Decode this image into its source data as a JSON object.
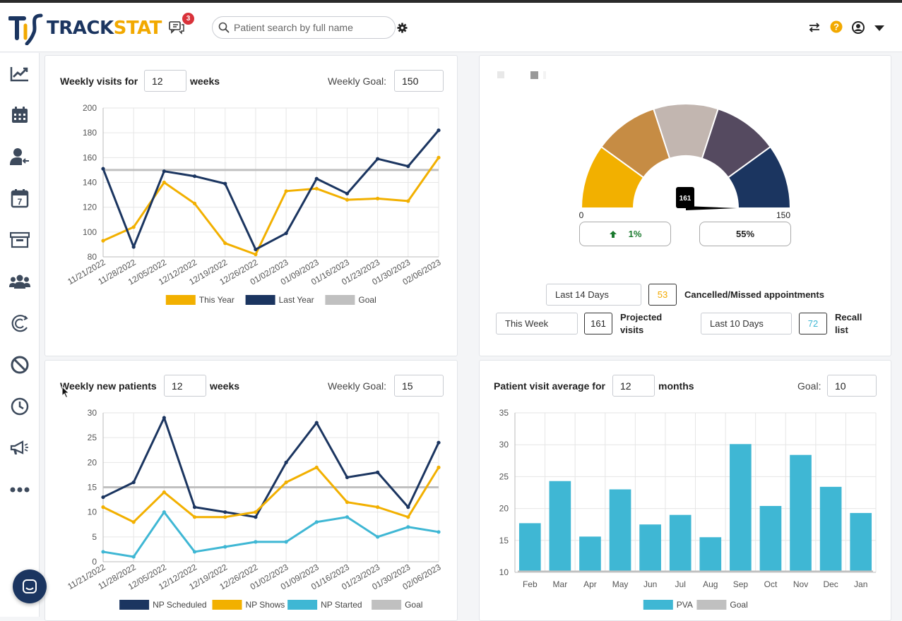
{
  "app": {
    "brand_part1": "TRACK",
    "brand_part2": "STAT",
    "notification_count": "3",
    "search_placeholder": "Patient search by full name",
    "colors": {
      "navy": "#1b3560",
      "gold": "#f2b000",
      "teal": "#3fb7d4",
      "goal_gray": "#c0c0c0",
      "badge_red": "#d9323a"
    }
  },
  "header_icons": [
    "chat-icon",
    "settings-gear-icon",
    "swap-arrows-icon",
    "help-icon",
    "user-account-icon",
    "dropdown-caret-icon"
  ],
  "sidebar": {
    "items": [
      "analytics-chart-icon",
      "calendar-icon",
      "user-arrival-icon",
      "calendar-day-icon",
      "archive-icon",
      "patients-group-icon",
      "recall-icon",
      "cancelled-icon",
      "history-clock-icon",
      "marketing-megaphone-icon",
      "more-icon"
    ],
    "calendar_day": "7"
  },
  "weekly_visits": {
    "title_prefix": "Weekly visits for",
    "weeks_value": "12",
    "title_suffix": "weeks",
    "goal_label": "Weekly Goal:",
    "goal_value": "150",
    "chart_data": {
      "type": "line",
      "categories": [
        "11/21/2022",
        "11/28/2022",
        "12/05/2022",
        "12/12/2022",
        "12/19/2022",
        "12/26/2022",
        "01/02/2023",
        "01/09/2023",
        "01/16/2023",
        "01/23/2023",
        "01/30/2023",
        "02/06/2023"
      ],
      "ylim": [
        80,
        200
      ],
      "yticks": [
        80,
        100,
        120,
        140,
        160,
        180,
        200
      ],
      "grid": true,
      "legend_position": "bottom",
      "series": [
        {
          "name": "This Year",
          "color": "#f2b000",
          "values": [
            93,
            104,
            140,
            123,
            91,
            82,
            133,
            135,
            126,
            127,
            125,
            160
          ]
        },
        {
          "name": "Last Year",
          "color": "#1b3560",
          "values": [
            151,
            88,
            149,
            145,
            139,
            86,
            99,
            143,
            131,
            159,
            153,
            182
          ]
        },
        {
          "name": "Goal",
          "color": "#c0c0c0",
          "values": [
            150,
            150,
            150,
            150,
            150,
            150,
            150,
            150,
            150,
            150,
            150,
            150
          ]
        }
      ]
    }
  },
  "gauge": {
    "min_label": "0",
    "max_label": "150",
    "value_label": "161",
    "value": 161,
    "max": 150,
    "segment_colors": [
      "#f2b000",
      "#c68c44",
      "#c2b6b0",
      "#554a60",
      "#1b3560"
    ],
    "change_text": "1%",
    "percent_text": "55%",
    "stats": {
      "cancelled": {
        "range": "Last 14 Days",
        "value": "53",
        "label": "Cancelled/Missed appointments"
      },
      "projected": {
        "range": "This Week",
        "value": "161",
        "label_line1": "Projected",
        "label_line2": "visits"
      },
      "recall": {
        "range": "Last 10 Days",
        "value": "72",
        "label_line1": "Recall",
        "label_line2": "list"
      }
    }
  },
  "new_patients": {
    "title_prefix": "Weekly new patients",
    "weeks_value": "12",
    "title_suffix": "weeks",
    "goal_label": "Weekly Goal:",
    "goal_value": "15",
    "chart_data": {
      "type": "line",
      "categories": [
        "11/21/2022",
        "11/28/2022",
        "12/05/2022",
        "12/12/2022",
        "12/19/2022",
        "12/26/2022",
        "01/02/2023",
        "01/09/2023",
        "01/16/2023",
        "01/23/2023",
        "01/30/2023",
        "02/06/2023"
      ],
      "ylim": [
        0,
        30
      ],
      "yticks": [
        0,
        5,
        10,
        15,
        20,
        25,
        30
      ],
      "grid": true,
      "legend_position": "bottom",
      "series": [
        {
          "name": "NP Scheduled",
          "color": "#1b3560",
          "values": [
            13,
            16,
            29,
            11,
            10,
            9,
            20,
            28,
            17,
            18,
            11,
            24
          ]
        },
        {
          "name": "NP Shows",
          "color": "#f2b000",
          "values": [
            11,
            8,
            14,
            9,
            9,
            10,
            16,
            19,
            12,
            11,
            9,
            19
          ]
        },
        {
          "name": "NP Started",
          "color": "#3fb7d4",
          "values": [
            2,
            1,
            10,
            2,
            3,
            4,
            4,
            8,
            9,
            5,
            7,
            6
          ]
        },
        {
          "name": "Goal",
          "color": "#c0c0c0",
          "values": [
            15,
            15,
            15,
            15,
            15,
            15,
            15,
            15,
            15,
            15,
            15,
            15
          ]
        }
      ]
    }
  },
  "pva": {
    "title_prefix": "Patient visit average for",
    "months_value": "12",
    "title_suffix": "months",
    "goal_label": "Goal:",
    "goal_value": "10",
    "chart_data": {
      "type": "bar",
      "categories": [
        "Feb",
        "Mar",
        "Apr",
        "May",
        "Jun",
        "Jul",
        "Aug",
        "Sep",
        "Oct",
        "Nov",
        "Dec",
        "Jan"
      ],
      "ylim": [
        10,
        35
      ],
      "yticks": [
        10,
        15,
        20,
        25,
        30,
        35
      ],
      "grid": true,
      "legend_position": "bottom",
      "series": [
        {
          "name": "PVA",
          "color": "#3fb7d4",
          "values": [
            17.7,
            24.3,
            15.6,
            23.0,
            17.5,
            19.0,
            15.5,
            30.1,
            20.4,
            28.4,
            23.4,
            19.3
          ]
        },
        {
          "name": "Goal",
          "color": "#c0c0c0",
          "values": [
            10,
            10,
            10,
            10,
            10,
            10,
            10,
            10,
            10,
            10,
            10,
            10
          ]
        }
      ]
    }
  }
}
